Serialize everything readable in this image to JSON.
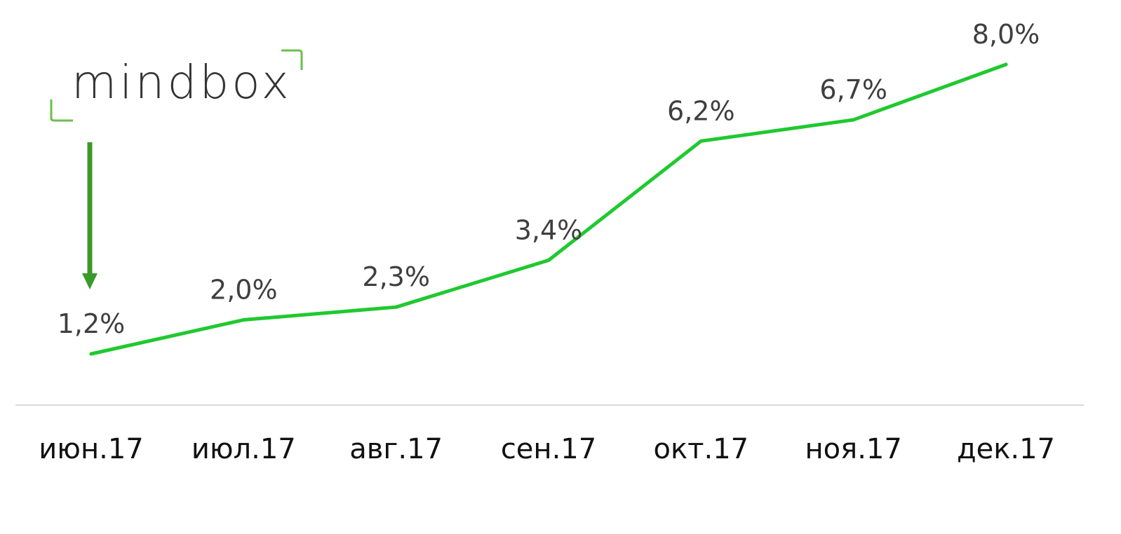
{
  "logo": {
    "text": "mindbox",
    "bracket_color": "#6abf4b",
    "arrow_color": "#3a9a2a"
  },
  "colors": {
    "line": "#1fc92f",
    "axis": "#d9d9d9"
  },
  "chart_data": {
    "type": "line",
    "title": "",
    "xlabel": "",
    "ylabel": "",
    "categories": [
      "июн.17",
      "июл.17",
      "авг.17",
      "сен.17",
      "окт.17",
      "ноя.17",
      "дек.17"
    ],
    "series": [
      {
        "values": [
          1.2,
          2.0,
          2.3,
          3.4,
          6.2,
          6.7,
          8.0
        ],
        "labels": [
          "1,2%",
          "2,0%",
          "2,3%",
          "3,4%",
          "6,2%",
          "6,7%",
          "8,0%"
        ]
      }
    ],
    "ylim": [
      0,
      8.5
    ],
    "grid": false,
    "legend": "none",
    "annotations": [
      {
        "type": "arrow",
        "points_to": "июн.17",
        "text": "mindbox"
      }
    ]
  }
}
